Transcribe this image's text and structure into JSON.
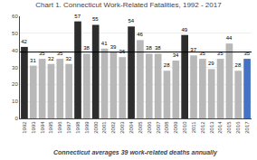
{
  "chart_data": {
    "type": "bar",
    "title": "Chart 1. Connecticut Work-Related Fatalities, 1992 - 2017",
    "subtitle": "Connecticut averages 39 work-related deaths annually",
    "categories": [
      "1992",
      "1993",
      "1994",
      "1995",
      "1996",
      "1997",
      "1998",
      "1999",
      "2000",
      "2001",
      "2002",
      "2003",
      "2004",
      "2005",
      "2006",
      "2007",
      "2008",
      "2009",
      "2010",
      "2011",
      "2012",
      "2013",
      "2014",
      "2015",
      "2016",
      "2017"
    ],
    "values": [
      42,
      31,
      35,
      32,
      35,
      32,
      57,
      38,
      55,
      41,
      39,
      36,
      54,
      46,
      38,
      38,
      28,
      34,
      49,
      37,
      35,
      29,
      35,
      44,
      28,
      35
    ],
    "colors": [
      "#2d2d2d",
      "#b8b8b8",
      "#b8b8b8",
      "#b8b8b8",
      "#b8b8b8",
      "#b8b8b8",
      "#2d2d2d",
      "#b8b8b8",
      "#2d2d2d",
      "#b8b8b8",
      "#b8b8b8",
      "#b8b8b8",
      "#2d2d2d",
      "#b8b8b8",
      "#b8b8b8",
      "#b8b8b8",
      "#b8b8b8",
      "#b8b8b8",
      "#2d2d2d",
      "#b8b8b8",
      "#b8b8b8",
      "#b8b8b8",
      "#b8b8b8",
      "#b8b8b8",
      "#b8b8b8",
      "#4472c4"
    ],
    "average_line": 39,
    "ylim": [
      0,
      60
    ],
    "yticks": [
      0,
      10,
      20,
      30,
      40,
      50,
      60
    ],
    "grid": true,
    "data_labels": true
  }
}
